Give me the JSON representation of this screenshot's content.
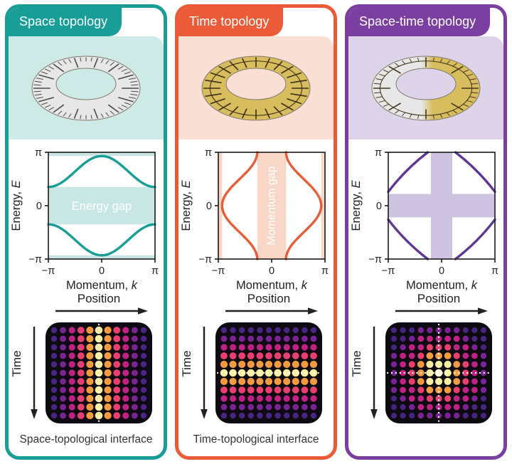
{
  "figure": {
    "position_label": "Position",
    "time_label": "Time",
    "cards": [
      {
        "header": "Space topology",
        "accent": "#189e97",
        "tint": "#cdeae7",
        "illustration": "mobius-ruler-ring",
        "caption": "Space-topological interface"
      },
      {
        "header": "Time topology",
        "accent": "#ec5b38",
        "tint": "#fadfd5",
        "illustration": "mobius-clock-ring",
        "caption": "Time-topological interface"
      },
      {
        "header": "Space-time topology",
        "accent": "#7a3fa0",
        "tint": "#ddd4ea",
        "illustration": "mobius-ruler-clock-ring",
        "caption": ""
      }
    ]
  },
  "chart_data": [
    {
      "id": "space-bands",
      "type": "line",
      "panel": "Space topology",
      "xlabel": "Momentum, k",
      "ylabel": "Energy, E",
      "xlabel_text": "Momentum, ",
      "xlabel_var": "k",
      "ylabel_text": "Energy, ",
      "ylabel_var": "E",
      "xlim_pi": [
        -1,
        1
      ],
      "ylim_pi": [
        -1,
        1
      ],
      "xticks": [
        {
          "v": -1,
          "label": "−π"
        },
        {
          "v": 0,
          "label": "0"
        },
        {
          "v": 1,
          "label": "π"
        }
      ],
      "yticks": [
        {
          "v": 1,
          "label": "π"
        },
        {
          "v": 0,
          "label": "0"
        },
        {
          "v": -1,
          "label": "−π"
        }
      ],
      "series": [
        {
          "name": "upper band",
          "formula_pi_units": "E = 0.64 + 0.29·cos(k)"
        },
        {
          "name": "lower band",
          "formula_pi_units": "E = −0.64 − 0.29·cos(k)"
        }
      ],
      "curve": {
        "mode": "cos",
        "base": 0.64,
        "amp": 0.29
      },
      "gap": {
        "label": "Energy gap",
        "orientation": "horizontal",
        "central_halfwidth_pi": 0.35,
        "edge_band_from_pi": 0.93
      },
      "curve_color": "#189e97",
      "band_color": "#c8e6e3"
    },
    {
      "id": "time-bands",
      "type": "line",
      "panel": "Time topology",
      "xlabel": "Momentum, k",
      "ylabel": "Energy, E",
      "xlabel_text": "Momentum, ",
      "xlabel_var": "k",
      "ylabel_text": "Energy, ",
      "ylabel_var": "E",
      "xlim_pi": [
        -1,
        1
      ],
      "ylim_pi": [
        -1,
        1
      ],
      "xticks": [
        {
          "v": -1,
          "label": "−π"
        },
        {
          "v": 0,
          "label": "0"
        },
        {
          "v": 1,
          "label": "π"
        }
      ],
      "yticks": [
        {
          "v": 1,
          "label": "π"
        },
        {
          "v": 0,
          "label": "0"
        },
        {
          "v": -1,
          "label": "−π"
        }
      ],
      "series": [
        {
          "name": "right band",
          "formula_pi_units": "k = 0.60 + 0.33·cos(E)"
        },
        {
          "name": "left band",
          "formula_pi_units": "k = −0.60 − 0.33·cos(E)"
        }
      ],
      "curve": {
        "mode": "cos_transposed",
        "base": 0.6,
        "amp": 0.33
      },
      "gap": {
        "label": "Momentum gap",
        "orientation": "vertical",
        "central_halfwidth_pi": 0.27,
        "edge_band_from_pi": 0.93
      },
      "curve_color": "#e55f39",
      "band_color": "#f8d7c9"
    },
    {
      "id": "space-time-bands",
      "type": "line",
      "panel": "Space-time topology",
      "xlabel": "Momentum, k",
      "ylabel": "Energy, E",
      "xlabel_text": "Momentum, ",
      "xlabel_var": "k",
      "ylabel_text": "Energy, ",
      "ylabel_var": "E",
      "xlim_pi": [
        -1,
        1
      ],
      "ylim_pi": [
        -1,
        1
      ],
      "xticks": [
        {
          "v": -1,
          "label": "−π"
        },
        {
          "v": 0,
          "label": "0"
        },
        {
          "v": 1,
          "label": "π"
        }
      ],
      "yticks": [
        {
          "v": 1,
          "label": "π"
        },
        {
          "v": 0,
          "label": "0"
        },
        {
          "v": -1,
          "label": "−π"
        }
      ],
      "series": [
        {
          "name": "diamond band arcs",
          "description": "four arcs from (±π, ±0.26π) to (±0.26π, ±π)"
        }
      ],
      "curve": {
        "mode": "diamond",
        "intercept": 0.26,
        "bulge": 0.68
      },
      "gap": {
        "label": "",
        "orientation": "cross",
        "halfwidth_k_pi": 0.2,
        "halfwidth_e_pi": 0.22
      },
      "curve_color": "#5e3795",
      "band_color": "#cfc3e2"
    },
    {
      "id": "space-lattice",
      "type": "heatmap",
      "panel": "Space topology",
      "rows": 11,
      "cols": 11,
      "gradient": "columns",
      "dotted": "vertical",
      "palette": [
        "#f5ef9f",
        "#f49a3f",
        "#e93e70",
        "#bf2185",
        "#7a2394",
        "#482581"
      ]
    },
    {
      "id": "time-lattice",
      "type": "heatmap",
      "panel": "Time topology",
      "rows": 11,
      "cols": 11,
      "gradient": "rows",
      "dotted": "horizontal",
      "palette": [
        "#f5ef9f",
        "#f49a3f",
        "#e93e70",
        "#bf2185",
        "#7a2394",
        "#482581"
      ]
    },
    {
      "id": "space-time-lattice",
      "type": "heatmap",
      "panel": "Space-time topology",
      "rows": 11,
      "cols": 11,
      "gradient": "radial",
      "dotted": "both",
      "palette": [
        "#fdf9d8",
        "#f5ef9f",
        "#f49a3f",
        "#e93e70",
        "#bf2185",
        "#7a2394",
        "#482581"
      ]
    }
  ]
}
